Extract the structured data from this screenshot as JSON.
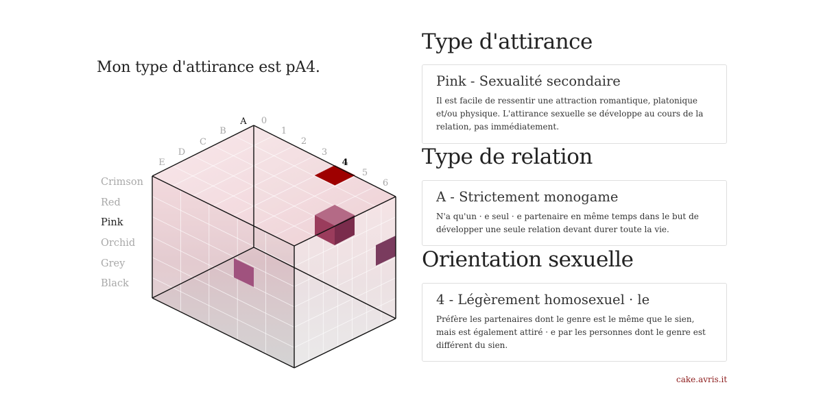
{
  "headline": "Mon type d'attirance est pA4.",
  "colors": {
    "items": [
      "Crimson",
      "Red",
      "Pink",
      "Orchid",
      "Grey",
      "Black"
    ],
    "active_index": 2
  },
  "cube": {
    "letters": [
      "A",
      "B",
      "C",
      "D",
      "E"
    ],
    "digits": [
      "0",
      "1",
      "2",
      "3",
      "4",
      "5",
      "6"
    ],
    "selected_letter": "A",
    "selected_digit": "4",
    "highlight_colors": {
      "top": "#9e0000",
      "pink_face": "#9a3c5c",
      "pink_right": "#7a2c4c",
      "pink_left_lower": "#a0527e",
      "right_face": "#7a3b5e"
    }
  },
  "sections": {
    "attraction": {
      "heading": "Type d'attirance",
      "card_title": "Pink - Sexualité secondaire",
      "card_desc": "Il est facile de ressentir une attraction romantique, platonique et/ou physique. L'attirance sexuelle se développe au cours de la relation, pas immédiatement."
    },
    "relation": {
      "heading": "Type de relation",
      "card_title": "A - Strictement monogame",
      "card_desc": "N'a qu'un · e seul · e partenaire en même temps dans le but de développer une seule relation devant durer toute la vie."
    },
    "orientation": {
      "heading": "Orientation sexuelle",
      "card_title": "4 - Légèrement homosexuel · le",
      "card_desc": "Préfère les partenaires dont le genre est le même que le sien, mais est également attiré · e par les personnes dont le genre est différent du sien."
    }
  },
  "footer": {
    "link_text": "cake.avris.it"
  }
}
